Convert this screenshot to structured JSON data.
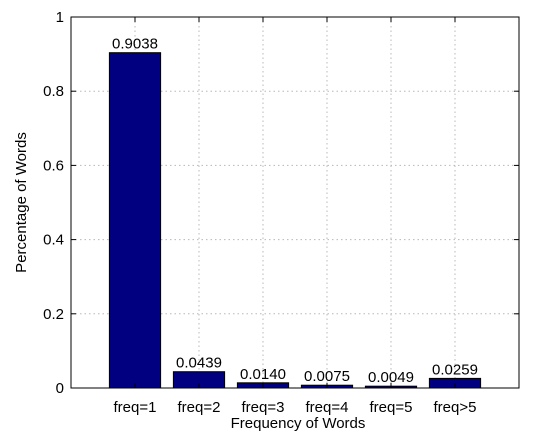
{
  "chart_data": {
    "type": "bar",
    "categories": [
      "freq=1",
      "freq=2",
      "freq=3",
      "freq=4",
      "freq=5",
      "freq>5"
    ],
    "values": [
      0.9038,
      0.0439,
      0.014,
      0.0075,
      0.0049,
      0.0259
    ],
    "value_labels": [
      "0.9038",
      "0.0439",
      "0.0140",
      "0.0075",
      "0.0049",
      "0.0259"
    ],
    "title": "",
    "xlabel": "Frequency of Words",
    "ylabel": "Percentage of Words",
    "ylim": [
      0,
      1
    ],
    "yticks": [
      0,
      0.2,
      0.4,
      0.6,
      0.8,
      1
    ],
    "ytick_labels": [
      "0",
      "0.2",
      "0.4",
      "0.6",
      "0.8",
      "1"
    ],
    "grid": true,
    "bar_color": "#000080"
  }
}
